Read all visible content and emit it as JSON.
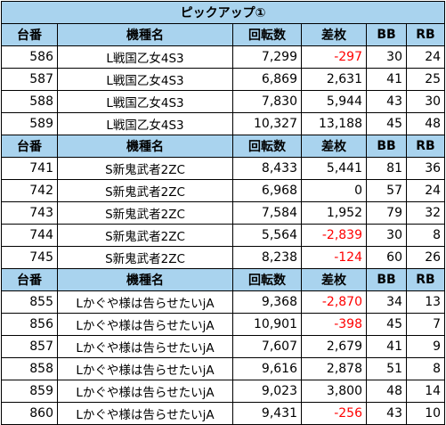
{
  "title": "ピックアップ①",
  "colors": {
    "header_bg": "#a9d3ee",
    "negative": "#ff0000",
    "border": "#000000"
  },
  "sections": [
    {
      "headers": [
        "台番",
        "機種名",
        "回転数",
        "差枚",
        "BB",
        "RB"
      ],
      "rows": [
        {
          "num": "586",
          "machine": "L戦国乙女4S3",
          "spins": "7,299",
          "diff": "-297",
          "bb": "30",
          "rb": "24"
        },
        {
          "num": "587",
          "machine": "L戦国乙女4S3",
          "spins": "6,869",
          "diff": "2,631",
          "bb": "41",
          "rb": "25"
        },
        {
          "num": "588",
          "machine": "L戦国乙女4S3",
          "spins": "7,830",
          "diff": "5,944",
          "bb": "43",
          "rb": "30"
        },
        {
          "num": "589",
          "machine": "L戦国乙女4S3",
          "spins": "10,327",
          "diff": "13,188",
          "bb": "45",
          "rb": "48"
        }
      ]
    },
    {
      "headers": [
        "台番",
        "機種名",
        "回転数",
        "差枚",
        "BB",
        "RB"
      ],
      "rows": [
        {
          "num": "741",
          "machine": "S新鬼武者2ZC",
          "spins": "8,433",
          "diff": "5,441",
          "bb": "81",
          "rb": "36"
        },
        {
          "num": "742",
          "machine": "S新鬼武者2ZC",
          "spins": "6,968",
          "diff": "0",
          "bb": "57",
          "rb": "24"
        },
        {
          "num": "743",
          "machine": "S新鬼武者2ZC",
          "spins": "7,584",
          "diff": "1,952",
          "bb": "79",
          "rb": "32"
        },
        {
          "num": "744",
          "machine": "S新鬼武者2ZC",
          "spins": "5,564",
          "diff": "-2,839",
          "bb": "30",
          "rb": "8"
        },
        {
          "num": "745",
          "machine": "S新鬼武者2ZC",
          "spins": "8,238",
          "diff": "-124",
          "bb": "60",
          "rb": "26"
        }
      ]
    },
    {
      "headers": [
        "台番",
        "機種名",
        "回転数",
        "差枚",
        "BB",
        "RB"
      ],
      "rows": [
        {
          "num": "855",
          "machine": "Lかぐや様は告らせたいjA",
          "spins": "9,368",
          "diff": "-2,870",
          "bb": "34",
          "rb": "13"
        },
        {
          "num": "856",
          "machine": "Lかぐや様は告らせたいjA",
          "spins": "10,901",
          "diff": "-398",
          "bb": "45",
          "rb": "7"
        },
        {
          "num": "857",
          "machine": "Lかぐや様は告らせたいjA",
          "spins": "7,607",
          "diff": "2,679",
          "bb": "41",
          "rb": "9"
        },
        {
          "num": "858",
          "machine": "Lかぐや様は告らせたいjA",
          "spins": "9,616",
          "diff": "2,878",
          "bb": "51",
          "rb": "8"
        },
        {
          "num": "859",
          "machine": "Lかぐや様は告らせたいjA",
          "spins": "9,023",
          "diff": "3,800",
          "bb": "48",
          "rb": "14"
        },
        {
          "num": "860",
          "machine": "Lかぐや様は告らせたいjA",
          "spins": "9,431",
          "diff": "-256",
          "bb": "43",
          "rb": "10"
        }
      ]
    }
  ]
}
